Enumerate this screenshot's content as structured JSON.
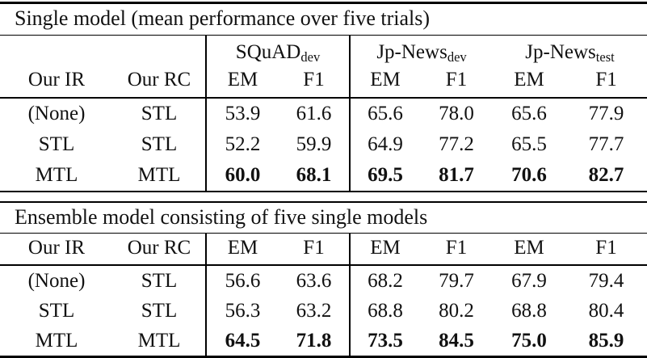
{
  "page": {
    "background_color": "#ffffff",
    "text_color": "#111111",
    "rule_color": "#000000"
  },
  "tables": [
    {
      "caption": "Single model (mean performance over five trials)",
      "group_headers": [
        {
          "name": "SQuAD",
          "subscript": "dev"
        },
        {
          "name": "Jp-News",
          "subscript": "dev"
        },
        {
          "name": "Jp-News",
          "subscript": "test"
        }
      ],
      "column_headers": [
        "Our IR",
        "Our RC",
        "EM",
        "F1",
        "EM",
        "F1",
        "EM",
        "F1"
      ],
      "rows": [
        {
          "our_ir": "(None)",
          "our_rc": "STL",
          "values": [
            "53.9",
            "61.6",
            "65.6",
            "78.0",
            "65.6",
            "77.9"
          ],
          "bold_values": false
        },
        {
          "our_ir": "STL",
          "our_rc": "STL",
          "values": [
            "52.2",
            "59.9",
            "64.9",
            "77.2",
            "65.5",
            "77.7"
          ],
          "bold_values": false
        },
        {
          "our_ir": "MTL",
          "our_rc": "MTL",
          "values": [
            "60.0",
            "68.1",
            "69.5",
            "81.7",
            "70.6",
            "82.7"
          ],
          "bold_values": true
        }
      ]
    },
    {
      "caption": "Ensemble model consisting of five single models",
      "column_headers": [
        "Our IR",
        "Our RC",
        "EM",
        "F1",
        "EM",
        "F1",
        "EM",
        "F1"
      ],
      "rows": [
        {
          "our_ir": "(None)",
          "our_rc": "STL",
          "values": [
            "56.6",
            "63.6",
            "68.2",
            "79.7",
            "67.9",
            "79.4"
          ],
          "bold_values": false
        },
        {
          "our_ir": "STL",
          "our_rc": "STL",
          "values": [
            "56.3",
            "63.2",
            "68.8",
            "80.2",
            "68.8",
            "80.4"
          ],
          "bold_values": false
        },
        {
          "our_ir": "MTL",
          "our_rc": "MTL",
          "values": [
            "64.5",
            "71.8",
            "73.5",
            "84.5",
            "75.0",
            "85.9"
          ],
          "bold_values": true
        }
      ]
    }
  ]
}
